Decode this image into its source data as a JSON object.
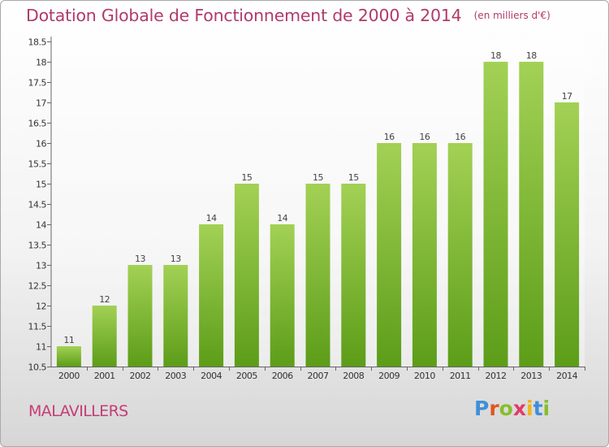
{
  "chart_data": {
    "type": "bar",
    "title": "Dotation Globale de Fonctionnement de 2000 à 2014",
    "unit_label": "(en milliers d'€)",
    "categories": [
      "2000",
      "2001",
      "2002",
      "2003",
      "2004",
      "2005",
      "2006",
      "2007",
      "2008",
      "2009",
      "2010",
      "2011",
      "2012",
      "2013",
      "2014"
    ],
    "values": [
      11,
      12,
      13,
      13,
      14,
      15,
      14,
      15,
      15,
      16,
      16,
      16,
      18,
      18,
      17
    ],
    "value_labels": [
      "11",
      "12",
      "13",
      "13",
      "14",
      "15",
      "14",
      "15",
      "15",
      "16",
      "16",
      "16",
      "18",
      "18",
      "17"
    ],
    "ylim": [
      10.5,
      18.5
    ],
    "yticks": [
      "10.5",
      "11",
      "11.5",
      "12",
      "12.5",
      "13",
      "13.5",
      "14",
      "14.5",
      "15",
      "15.5",
      "16",
      "16.5",
      "17",
      "17.5",
      "18",
      "18.5"
    ],
    "grid": false,
    "colors": {
      "bar_light": "#a3d155",
      "bar_dark": "#5c9d18",
      "title": "#b03a6a"
    }
  },
  "commune": "MALAVILLERS",
  "logo": {
    "letters": [
      "P",
      "r",
      "o",
      "x",
      "i",
      "t",
      "i"
    ],
    "colors": [
      "#3f8fd8",
      "#e0561e",
      "#86bf2a",
      "#e23a6a",
      "#f2b418",
      "#3f8fd8",
      "#86bf2a"
    ]
  }
}
